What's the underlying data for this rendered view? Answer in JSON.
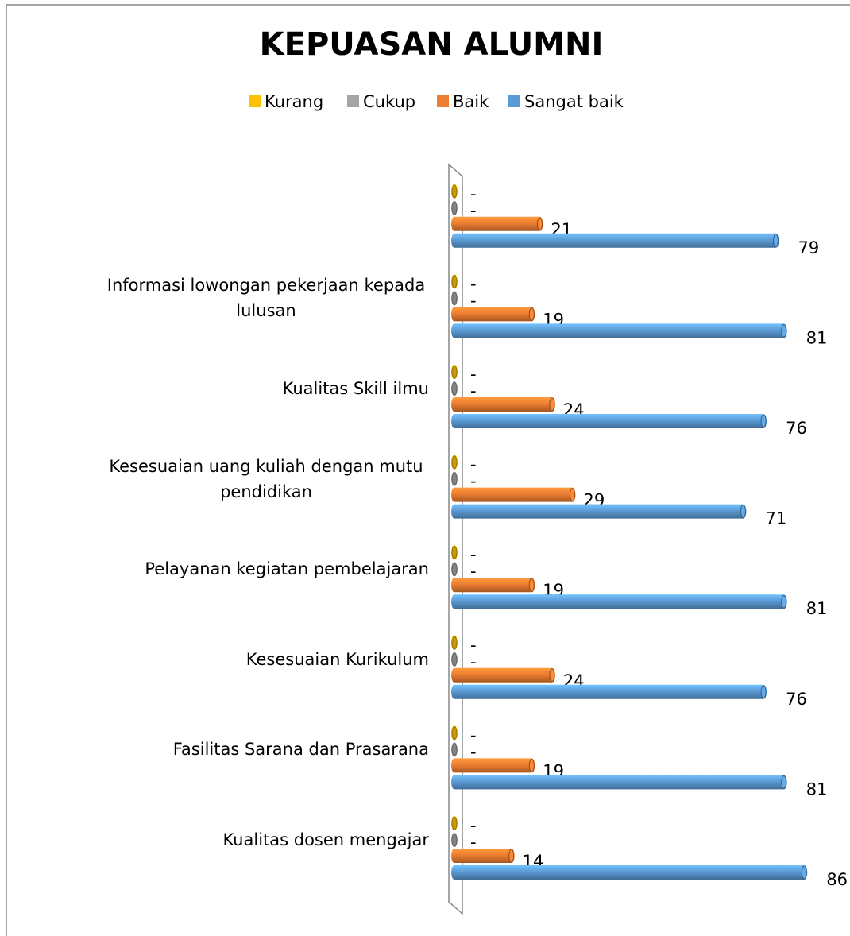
{
  "chart_data": {
    "type": "bar",
    "orientation": "horizontal",
    "title": "KEPUASAN ALUMNI",
    "categories": [
      "Kualitas dosen mengajar",
      "Fasilitas Sarana dan Prasarana",
      "Kesesuaian Kurikulum",
      "Pelayanan kegiatan pembelajaran",
      "Kesesuaian uang kuliah dengan mutu pendidikan",
      "Kualitas Skill ilmu",
      "Informasi lowongan pekerjaan kepada lulusan",
      null
    ],
    "series": [
      {
        "name": "Kurang",
        "color": "#ffc000",
        "values": [
          0,
          0,
          0,
          0,
          0,
          0,
          0,
          0
        ],
        "value_labels": [
          "-",
          "-",
          "-",
          "-",
          "-",
          "-",
          "-",
          "-"
        ]
      },
      {
        "name": "Cukup",
        "color": "#a5a5a5",
        "values": [
          0,
          0,
          0,
          0,
          0,
          0,
          0,
          0
        ],
        "value_labels": [
          "-",
          "-",
          "-",
          "-",
          "-",
          "-",
          "-",
          "-"
        ]
      },
      {
        "name": "Baik",
        "color": "#ed7d31",
        "values": [
          14,
          19,
          24,
          19,
          29,
          24,
          19,
          21
        ]
      },
      {
        "name": "Sangat baik",
        "color": "#5b9bd5",
        "values": [
          86,
          81,
          76,
          81,
          71,
          76,
          81,
          79
        ]
      }
    ],
    "legend": "top"
  }
}
